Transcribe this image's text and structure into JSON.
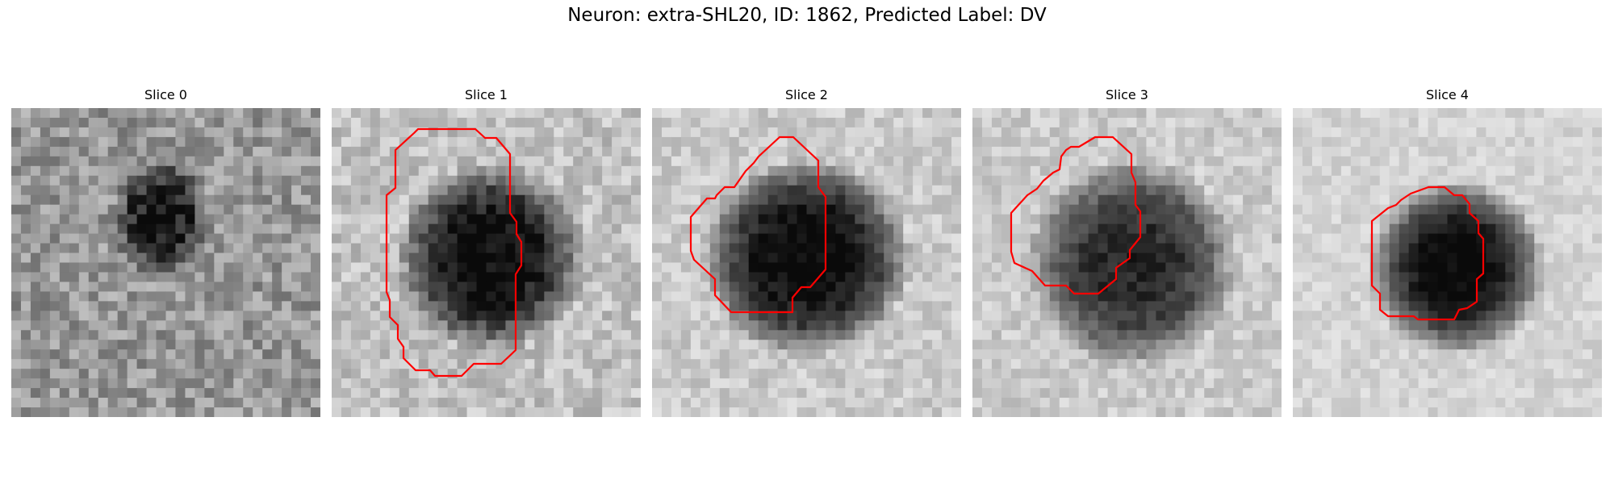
{
  "figure": {
    "title": "Neuron: extra-SHL20, ID: 1862, Predicted Label: DV"
  },
  "slices": [
    {
      "title": "Slice 0",
      "has_contour": false
    },
    {
      "title": "Slice 1",
      "has_contour": true
    },
    {
      "title": "Slice 2",
      "has_contour": true
    },
    {
      "title": "Slice 3",
      "has_contour": true
    },
    {
      "title": "Slice 4",
      "has_contour": true
    }
  ],
  "colors": {
    "contour": "#ff0000",
    "background": "#ffffff"
  }
}
